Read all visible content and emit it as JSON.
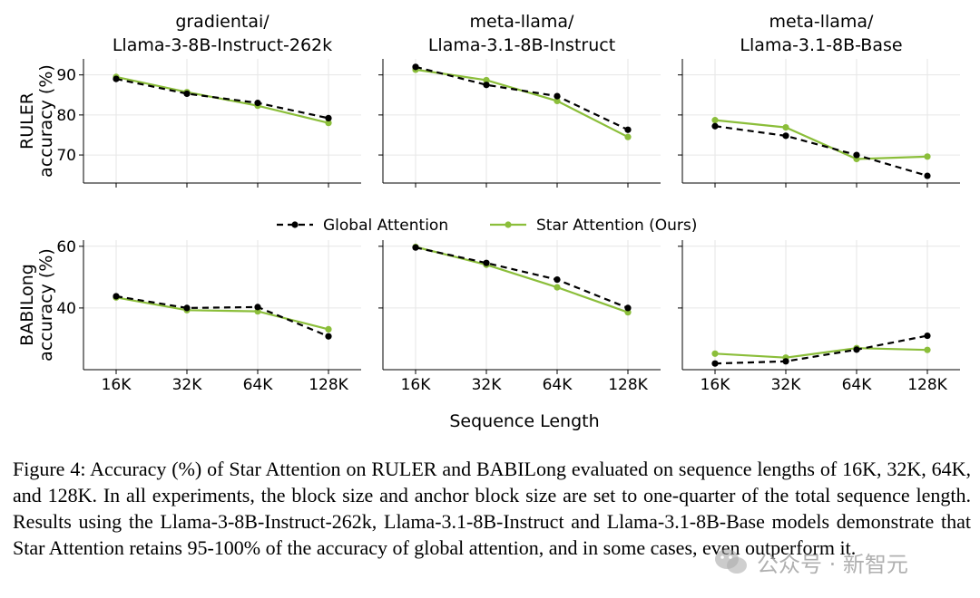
{
  "figure": {
    "caption": "Figure 4: Accuracy (%) of Star Attention on RULER and BABILong evaluated on sequence lengths of 16K, 32K, 64K, and 128K. In all experiments, the block size and anchor block size are set to one-quarter of the total sequence length. Results using the Llama-3-8B-Instruct-262k, Llama-3.1-8B-Instruct and Llama-3.1-8B-Base models demonstrate that Star Attention retains 95-100% of the accuracy of global attention, and in some cases, even outperform it.",
    "watermark": "公众号 · 新智元",
    "colors": {
      "global": "#000000",
      "star": "#8bbe3a",
      "grid": "#e6e6e6"
    }
  },
  "chart_data": {
    "type": "line",
    "xlabel": "Sequence Length",
    "x": [
      "16K",
      "32K",
      "64K",
      "128K"
    ],
    "legend": {
      "placement": "center, between rows",
      "entries": [
        "Global Attention",
        "Star Attention (Ours)"
      ]
    },
    "grid": true,
    "columns": [
      {
        "title_line1": "gradientai/",
        "title_line2": "Llama-3-8B-Instruct-262k"
      },
      {
        "title_line1": "meta-llama/",
        "title_line2": "Llama-3.1-8B-Instruct"
      },
      {
        "title_line1": "meta-llama/",
        "title_line2": "Llama-3.1-8B-Base"
      }
    ],
    "rows": [
      {
        "ylabel_line1": "RULER",
        "ylabel_line2": "accuracy (%)",
        "ylim": [
          63,
          94
        ],
        "yticks": [
          70,
          80,
          90
        ],
        "panels": [
          {
            "series": [
              {
                "name": "Global Attention",
                "values": [
                  89.0,
                  85.3,
                  83.0,
                  79.2
                ]
              },
              {
                "name": "Star Attention (Ours)",
                "values": [
                  89.5,
                  85.7,
                  82.3,
                  78.0
                ]
              }
            ]
          },
          {
            "series": [
              {
                "name": "Global Attention",
                "values": [
                  92.0,
                  87.5,
                  84.7,
                  76.3
                ]
              },
              {
                "name": "Star Attention (Ours)",
                "values": [
                  91.3,
                  88.7,
                  83.5,
                  74.5
                ]
              }
            ]
          },
          {
            "series": [
              {
                "name": "Global Attention",
                "values": [
                  77.2,
                  74.8,
                  70.0,
                  64.8
                ]
              },
              {
                "name": "Star Attention (Ours)",
                "values": [
                  78.7,
                  76.9,
                  69.0,
                  69.6
                ]
              }
            ]
          }
        ]
      },
      {
        "ylabel_line1": "BABILong",
        "ylabel_line2": "accuracy (%)",
        "ylim": [
          20,
          62
        ],
        "yticks": [
          40,
          60
        ],
        "panels": [
          {
            "series": [
              {
                "name": "Global Attention",
                "values": [
                  43.8,
                  40.0,
                  40.3,
                  30.8
                ]
              },
              {
                "name": "Star Attention (Ours)",
                "values": [
                  43.4,
                  39.3,
                  38.9,
                  33.1
                ]
              }
            ]
          },
          {
            "series": [
              {
                "name": "Global Attention",
                "values": [
                  59.6,
                  54.6,
                  49.2,
                  40.0
                ]
              },
              {
                "name": "Star Attention (Ours)",
                "values": [
                  59.8,
                  54.0,
                  46.7,
                  38.6
                ]
              }
            ]
          },
          {
            "series": [
              {
                "name": "Global Attention",
                "values": [
                  22.0,
                  22.7,
                  26.5,
                  31.0
                ]
              },
              {
                "name": "Star Attention (Ours)",
                "values": [
                  25.2,
                  23.9,
                  27.0,
                  26.4
                ]
              }
            ]
          }
        ]
      }
    ]
  }
}
